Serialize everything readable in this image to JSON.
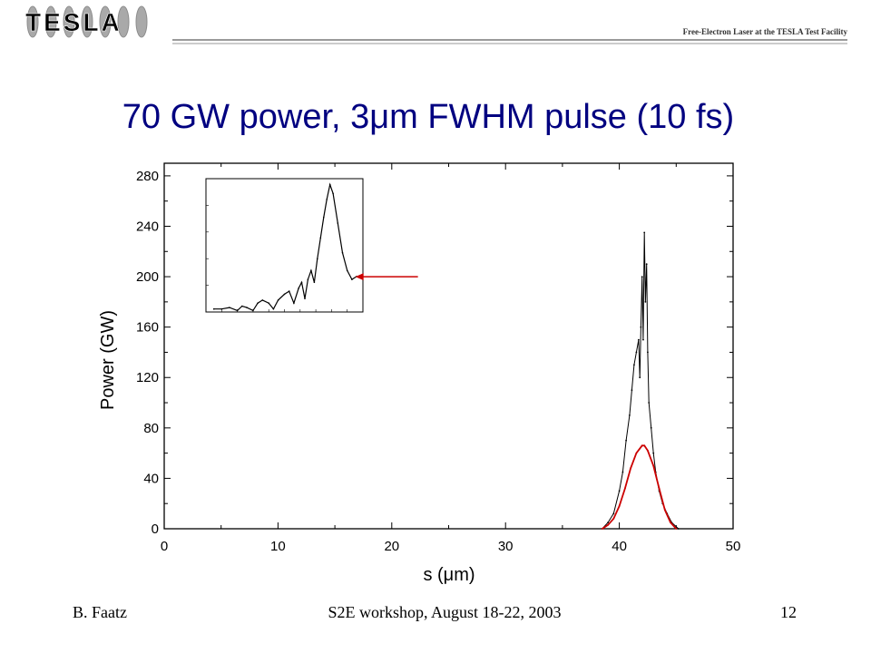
{
  "header": {
    "logo_text": "TESLA",
    "subtitle": "Free-Electron Laser at the TESLA Test Facility"
  },
  "slide_title": "70 GW power, 3μm FWHM pulse (10 fs)",
  "footer": {
    "author": "B. Faatz",
    "event": "S2E workshop, August 18-22, 2003",
    "page": "12"
  },
  "chart_data": {
    "type": "line",
    "title": "",
    "xlabel": "s (μm)",
    "ylabel": "Power (GW)",
    "xlim": [
      0,
      50
    ],
    "ylim": [
      0,
      290
    ],
    "x_ticks": [
      "0",
      "10",
      "20",
      "30",
      "40",
      "50"
    ],
    "y_ticks": [
      "0",
      "40",
      "80",
      "120",
      "160",
      "200",
      "240",
      "280"
    ],
    "grid": false,
    "legend": "none",
    "series": [
      {
        "color": "#000000",
        "style": "noisy spikes",
        "x": [
          38.5,
          39,
          39.5,
          40,
          40.3,
          40.6,
          40.9,
          41.1,
          41.3,
          41.5,
          41.7,
          41.8,
          41.9,
          42.0,
          42.1,
          42.2,
          42.3,
          42.4,
          42.5,
          42.6,
          42.8,
          43.0,
          43.2,
          43.5,
          43.8,
          44.2,
          44.6,
          45.2
        ],
        "y": [
          0,
          5,
          12,
          30,
          45,
          70,
          90,
          110,
          130,
          140,
          150,
          120,
          160,
          200,
          150,
          235,
          180,
          210,
          140,
          100,
          80,
          60,
          45,
          30,
          20,
          12,
          5,
          0
        ]
      },
      {
        "color": "#cc0000",
        "style": "smoothed envelope",
        "x": [
          38.5,
          39,
          39.5,
          40,
          40.5,
          41,
          41.5,
          42,
          42.2,
          42.5,
          43,
          43.5,
          44,
          44.5,
          45
        ],
        "y": [
          0,
          3,
          8,
          18,
          32,
          48,
          60,
          66,
          66,
          62,
          50,
          32,
          15,
          5,
          0
        ]
      }
    ],
    "annotation": {
      "type": "arrow",
      "color": "#cc0000",
      "from": [
        22.3,
        200
      ],
      "to": [
        16.8,
        200
      ]
    },
    "inset": {
      "type": "line",
      "log_scale": true,
      "tick_labels_legible": false,
      "series": [
        {
          "color": "#000000",
          "x": [
            0.5,
            1.0,
            1.5,
            2.0,
            2.3,
            2.6,
            3.0,
            3.3,
            3.6,
            4.0,
            4.3,
            4.6,
            5.0,
            5.3,
            5.6,
            5.9,
            6.1,
            6.3,
            6.5,
            6.7,
            6.9,
            7.1,
            7.3,
            7.5,
            7.7,
            7.9,
            8.1,
            8.4,
            8.7,
            9.0,
            9.3,
            9.6
          ],
          "y": [
            -3.9,
            -3.9,
            -3.85,
            -3.95,
            -3.8,
            -3.85,
            -3.95,
            -3.7,
            -3.6,
            -3.7,
            -3.9,
            -3.6,
            -3.4,
            -3.3,
            -3.7,
            -3.2,
            -3.0,
            -3.55,
            -2.9,
            -2.6,
            -3.0,
            -2.2,
            -1.5,
            -0.8,
            -0.2,
            0.3,
            0.0,
            -1.0,
            -2.0,
            -2.6,
            -2.9,
            -2.8
          ]
        }
      ]
    }
  }
}
